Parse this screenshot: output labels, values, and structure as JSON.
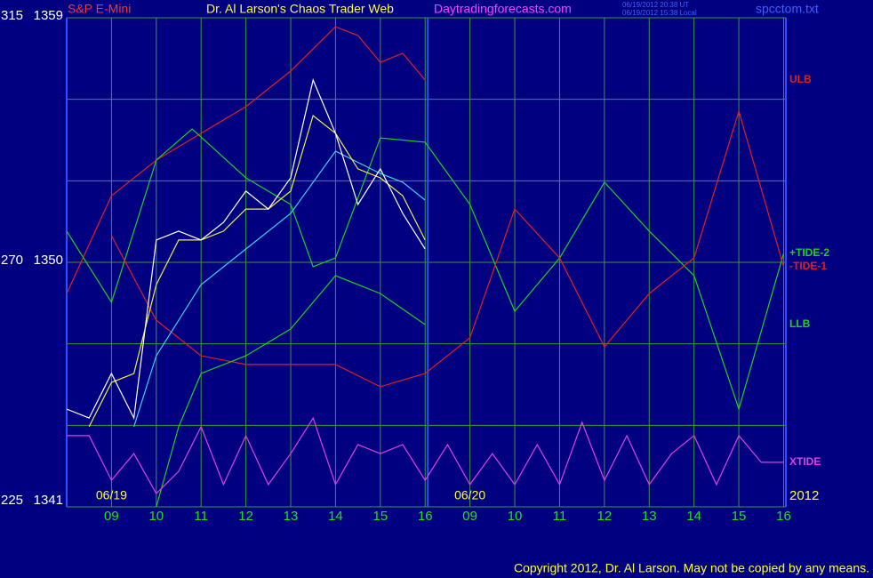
{
  "chart_data": {
    "type": "line",
    "header": {
      "symbol": "S&P E-Mini",
      "title": "Dr. Al Larson's Chaos Trader Web",
      "site": "Daytradingforecasts.com",
      "stamp_ut": "06/19/2012 20:38 UT",
      "stamp_local": "06/19/2012 15:38 Local",
      "file": "spcctom.txt"
    },
    "copyright": "Copyright 2012, Dr. Al Larson. May not be copied by any means.",
    "xlim": [
      0,
      16.05
    ],
    "xticks": [
      {
        "value": 1,
        "label": "09"
      },
      {
        "value": 2,
        "label": "10"
      },
      {
        "value": 3,
        "label": "11"
      },
      {
        "value": 4,
        "label": "12"
      },
      {
        "value": 5,
        "label": "13"
      },
      {
        "value": 6,
        "label": "14"
      },
      {
        "value": 7,
        "label": "15"
      },
      {
        "value": 8,
        "label": "16"
      },
      {
        "value": 9,
        "label": "09"
      },
      {
        "value": 10,
        "label": "10"
      },
      {
        "value": 11,
        "label": "11"
      },
      {
        "value": 12,
        "label": "12"
      },
      {
        "value": 13,
        "label": "13"
      },
      {
        "value": 14,
        "label": "14"
      },
      {
        "value": 15,
        "label": "15"
      },
      {
        "value": 16,
        "label": "16"
      }
    ],
    "date_labels": [
      {
        "value": 1,
        "label": "06/19"
      },
      {
        "value": 9,
        "label": "06/20"
      }
    ],
    "year": "2012",
    "session_break": 8,
    "ylim": [
      1341,
      1359
    ],
    "yticks": [
      1341,
      1350,
      1359
    ],
    "ygrid": [
      1341,
      1344,
      1347,
      1350,
      1353,
      1356,
      1359
    ],
    "y2lim": [
      225,
      315
    ],
    "y2ticks": [
      225,
      270,
      315
    ],
    "series": [
      {
        "name": "ULB",
        "color": "#e02020",
        "x": [
          0,
          1,
          2,
          3,
          4,
          5,
          6,
          6.5,
          7,
          7.5,
          8
        ],
        "values": [
          1348.85,
          1352.45,
          1353.76,
          1354.75,
          1355.73,
          1357.04,
          1358.67,
          1358.35,
          1357.36,
          1357.69,
          1356.71
        ]
      },
      {
        "name": "+TIDE-2",
        "color": "#20d020",
        "x": [
          0,
          1,
          2,
          2.8,
          4,
          5,
          5.5,
          6,
          7,
          8,
          9,
          10,
          11,
          12,
          13,
          14,
          15,
          16
        ],
        "values": [
          1351.15,
          1348.53,
          1353.76,
          1354.91,
          1353.11,
          1352.13,
          1349.84,
          1350.16,
          1354.58,
          1354.42,
          1352.13,
          1348.2,
          1350.16,
          1352.95,
          1351.15,
          1349.51,
          1344.6,
          1350.33
        ]
      },
      {
        "name": "-TIDE-1",
        "color": "#e02020",
        "x": [
          1,
          2,
          3,
          4,
          5,
          6,
          7,
          8,
          9,
          10,
          11,
          12,
          13,
          14,
          15,
          16
        ],
        "values": [
          1350.98,
          1347.87,
          1346.56,
          1346.24,
          1346.24,
          1346.24,
          1345.42,
          1345.91,
          1347.22,
          1351.96,
          1350.16,
          1346.89,
          1348.85,
          1350.16,
          1355.56,
          1349.84
        ]
      },
      {
        "name": "LLB",
        "color": "#20d020",
        "x": [
          2,
          2.5,
          3,
          4,
          5,
          6,
          7,
          8
        ],
        "values": [
          1341.0,
          1343.95,
          1345.91,
          1346.56,
          1347.55,
          1349.51,
          1348.85,
          1347.71
        ]
      },
      {
        "name": "XTIDE",
        "color": "#e040e0",
        "x": [
          0,
          0.5,
          1,
          1.5,
          2,
          2.5,
          3,
          3.5,
          4,
          4.5,
          5,
          5.5,
          6,
          6.5,
          7,
          7.5,
          8,
          8.5,
          9,
          9.5,
          10,
          10.5,
          11,
          11.5,
          12,
          12.5,
          13,
          13.5,
          14,
          14.5,
          15,
          15.5,
          16
        ],
        "values": [
          1343.62,
          1343.62,
          1341.98,
          1342.96,
          1341.49,
          1342.31,
          1343.95,
          1341.82,
          1343.62,
          1341.82,
          1342.96,
          1344.27,
          1341.82,
          1343.29,
          1342.96,
          1343.29,
          1341.98,
          1343.29,
          1341.82,
          1342.96,
          1341.82,
          1343.29,
          1341.82,
          1344.11,
          1341.98,
          1343.62,
          1341.82,
          1342.96,
          1343.62,
          1341.82,
          1343.62,
          1342.64,
          1342.64
        ]
      },
      {
        "color": "#40d0f0",
        "x": [
          1.5,
          2,
          3,
          4,
          5,
          6,
          7,
          7.5,
          8
        ],
        "values": [
          1343.95,
          1346.56,
          1349.18,
          1350.49,
          1351.8,
          1354.09,
          1353.27,
          1352.95,
          1352.29
        ]
      },
      {
        "color": "#f0f040",
        "x": [
          0.5,
          1,
          1.5,
          2,
          2.5,
          3,
          3.5,
          4,
          4.5,
          5,
          5.5,
          6,
          6.5,
          7,
          7.5,
          8
        ],
        "values": [
          1343.95,
          1345.58,
          1345.91,
          1349.18,
          1350.82,
          1350.82,
          1351.15,
          1351.96,
          1351.96,
          1352.62,
          1355.4,
          1354.75,
          1353.44,
          1353.11,
          1352.45,
          1350.82
        ]
      },
      {
        "color": "#ffffff",
        "x": [
          0,
          0.5,
          1,
          1.5,
          2,
          2.5,
          3,
          3.5,
          4,
          4.5,
          5,
          5.5,
          6,
          6.5,
          7,
          7.5,
          8
        ],
        "values": [
          1344.6,
          1344.27,
          1345.91,
          1344.27,
          1350.82,
          1351.15,
          1350.82,
          1351.47,
          1352.62,
          1351.96,
          1353.11,
          1356.71,
          1354.75,
          1352.13,
          1353.44,
          1351.8,
          1350.49
        ]
      }
    ]
  }
}
